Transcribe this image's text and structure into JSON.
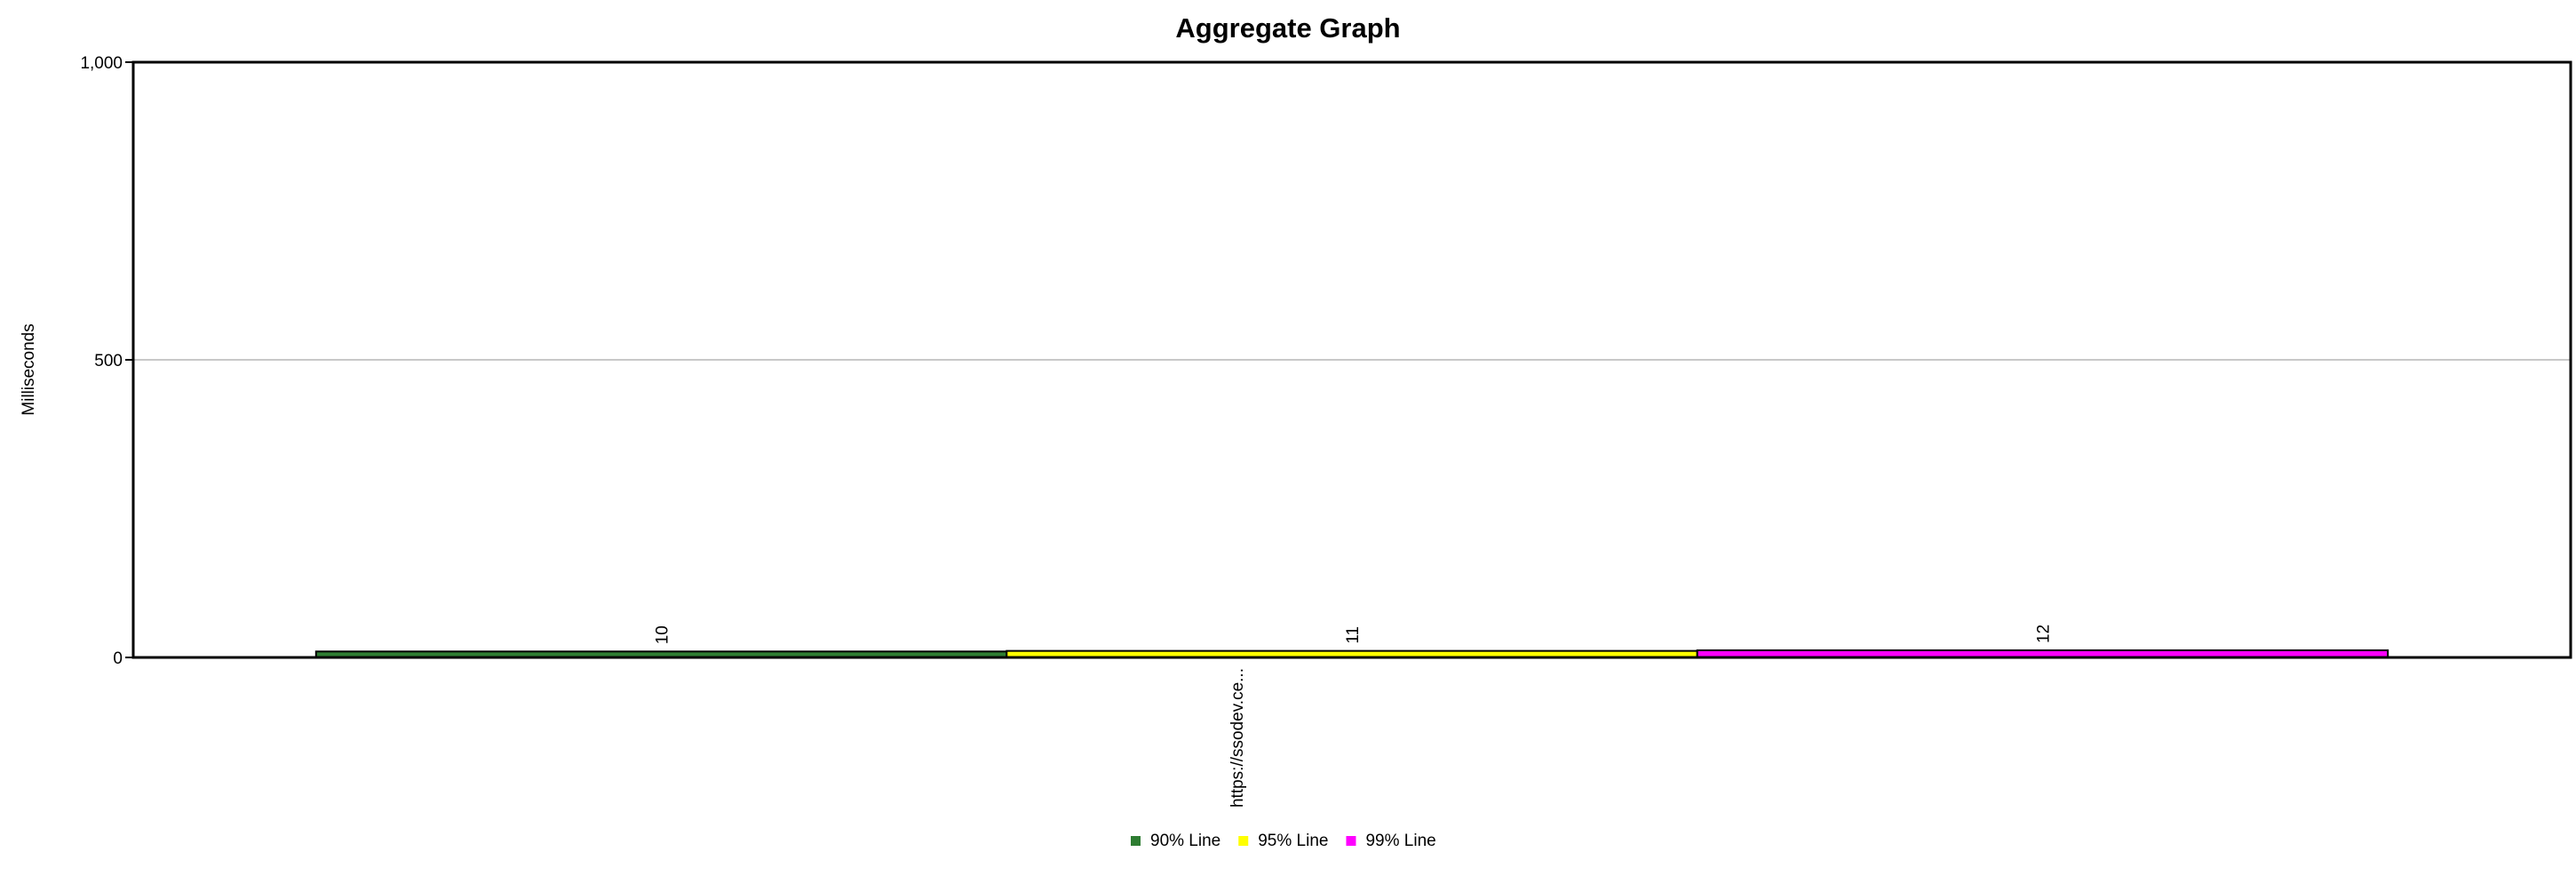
{
  "chart_data": {
    "type": "bar",
    "title": "Aggregate Graph",
    "xlabel": "",
    "ylabel": "Milliseconds",
    "ylim": [
      0,
      1000
    ],
    "yticks": [
      {
        "value": 0,
        "label": "0"
      },
      {
        "value": 500,
        "label": "500"
      },
      {
        "value": 1000,
        "label": "1,000"
      }
    ],
    "grid": true,
    "legend_position": "bottom",
    "categories": [
      "https://ssodev.ce..."
    ],
    "series": [
      {
        "name": "90% Line",
        "color": "#2e7d32",
        "values": [
          10
        ],
        "labels": [
          "10"
        ]
      },
      {
        "name": "95% Line",
        "color": "#ffff00",
        "values": [
          11
        ],
        "labels": [
          "11"
        ]
      },
      {
        "name": "99% Line",
        "color": "#ff00ff",
        "values": [
          12
        ],
        "labels": [
          "12"
        ]
      }
    ]
  }
}
